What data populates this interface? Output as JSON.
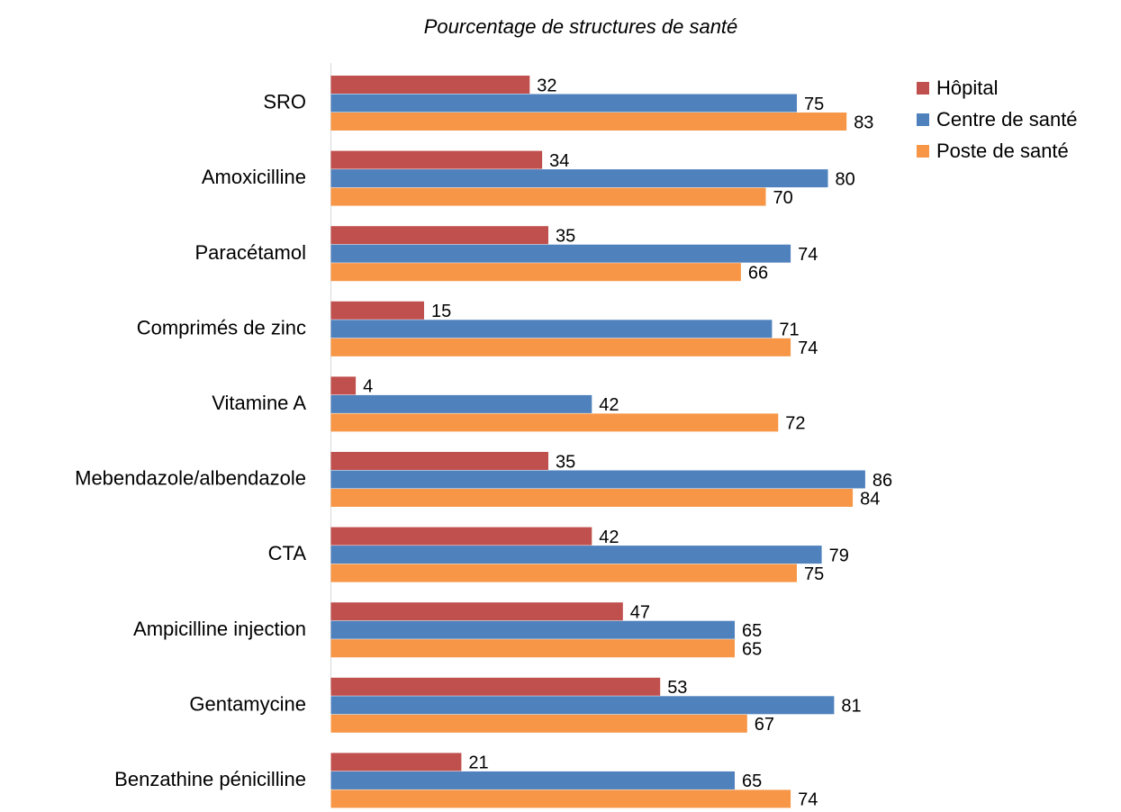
{
  "chart_data": {
    "type": "bar",
    "orientation": "horizontal",
    "title": "Pourcentage de structures de santé",
    "categories": [
      "SRO",
      "Amoxicilline",
      "Paracétamol",
      "Comprimés de zinc",
      "Vitamine A",
      "Mebendazole/albendazole",
      "CTA",
      "Ampicilline injection",
      "Gentamycine",
      "Benzathine pénicilline"
    ],
    "series": [
      {
        "name": "Hôpital",
        "color": "#c0504d",
        "values": [
          32,
          34,
          35,
          15,
          4,
          35,
          42,
          47,
          53,
          21
        ]
      },
      {
        "name": "Centre de santé",
        "color": "#4f81bd",
        "values": [
          75,
          80,
          74,
          71,
          42,
          86,
          79,
          65,
          81,
          65
        ]
      },
      {
        "name": "Poste de santé",
        "color": "#f79646",
        "values": [
          83,
          70,
          66,
          74,
          72,
          84,
          75,
          65,
          67,
          74
        ]
      }
    ],
    "legend": "right"
  }
}
